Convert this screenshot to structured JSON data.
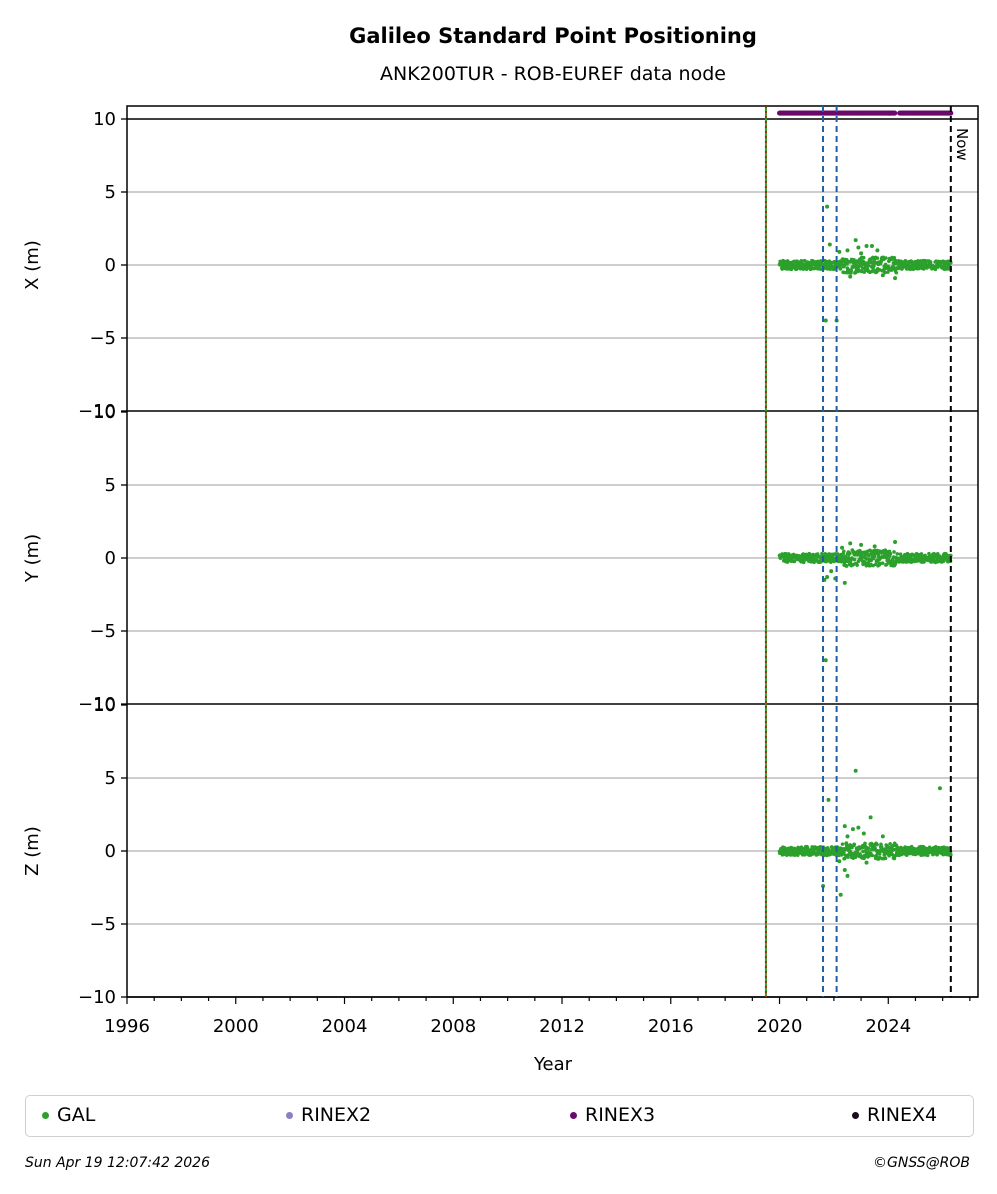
{
  "chart_data": {
    "type": "scatter",
    "title": "Galileo Standard Point Positioning",
    "subtitle": "ANK200TUR - ROB-EUREF data node",
    "xlabel": "Year",
    "xlim": [
      1996,
      2027.3
    ],
    "x_ticks": [
      "1996",
      "2000",
      "2004",
      "2008",
      "2012",
      "2016",
      "2020",
      "2024"
    ],
    "now_label": "Now",
    "panels": [
      {
        "ylabel": "X (m)",
        "ylim": [
          -10,
          10
        ],
        "y_ticks": [
          "−10",
          "−5",
          "0",
          "5",
          "10"
        ],
        "outliers": [
          [
            2021.75,
            4.0
          ],
          [
            2021.85,
            1.4
          ],
          [
            2021.7,
            -3.8
          ],
          [
            2022.1,
            -3.8
          ],
          [
            2022.2,
            0.9
          ],
          [
            2022.5,
            1.0
          ],
          [
            2022.8,
            1.7
          ],
          [
            2022.9,
            1.2
          ],
          [
            2023.0,
            0.8
          ],
          [
            2023.2,
            1.3
          ],
          [
            2023.4,
            1.3
          ],
          [
            2023.6,
            1.0
          ],
          [
            2023.8,
            -0.7
          ],
          [
            2024.25,
            -0.9
          ],
          [
            2022.6,
            -0.8
          ]
        ]
      },
      {
        "ylabel": "Y (m)",
        "ylim": [
          -10,
          10
        ],
        "y_ticks": [
          "−10",
          "−5",
          "0",
          "5",
          "10"
        ],
        "outliers": [
          [
            2021.7,
            -7.0
          ],
          [
            2021.65,
            -1.5
          ],
          [
            2021.75,
            -1.3
          ],
          [
            2021.9,
            -0.9
          ],
          [
            2022.05,
            -1.4
          ],
          [
            2022.4,
            -1.7
          ],
          [
            2022.6,
            1.0
          ],
          [
            2022.3,
            0.7
          ],
          [
            2023.0,
            0.9
          ],
          [
            2023.5,
            0.8
          ],
          [
            2024.25,
            1.1
          ]
        ]
      },
      {
        "ylabel": "Z (m)",
        "ylim": [
          -10,
          10
        ],
        "y_ticks": [
          "−10",
          "−5",
          "0",
          "5",
          "10"
        ],
        "outliers": [
          [
            2021.6,
            -2.4
          ],
          [
            2021.8,
            3.5
          ],
          [
            2022.25,
            -3.0
          ],
          [
            2022.8,
            5.5
          ],
          [
            2023.35,
            2.3
          ],
          [
            2022.4,
            1.7
          ],
          [
            2022.7,
            1.5
          ],
          [
            2022.9,
            1.6
          ],
          [
            2022.5,
            1.0
          ],
          [
            2022.2,
            -0.7
          ],
          [
            2022.4,
            -1.3
          ],
          [
            2022.5,
            -1.7
          ],
          [
            2023.1,
            1.2
          ],
          [
            2023.8,
            1.0
          ],
          [
            2025.9,
            4.3
          ],
          [
            2023.2,
            -0.8
          ]
        ]
      }
    ],
    "series": [
      {
        "name": "GAL",
        "color": "#2ca02c",
        "x_range": [
          2020.0,
          2026.3
        ],
        "typical_value": 0
      },
      {
        "name": "RINEX2",
        "color": "#8c7fbf"
      },
      {
        "name": "RINEX3",
        "color": "#6a0a6a",
        "x_range": [
          2020.0,
          2026.3
        ],
        "y_value": 10.4,
        "gap": [
          2024.25,
          2024.4
        ]
      },
      {
        "name": "RINEX4",
        "color": "#1a0a1a"
      }
    ],
    "vertical_lines": [
      {
        "x": 2019.5,
        "color": "#2ca02c",
        "style": "solid"
      },
      {
        "x": 2019.5,
        "color": "#cc0000",
        "style": "dotted"
      },
      {
        "x": 2021.6,
        "color": "#1f5fa8",
        "style": "dashed"
      },
      {
        "x": 2022.1,
        "color": "#1f5fa8",
        "style": "dashed"
      },
      {
        "x": 2026.3,
        "color": "#000000",
        "style": "dashed"
      }
    ]
  },
  "legend": {
    "items": [
      {
        "label": "GAL",
        "color": "#2ca02c"
      },
      {
        "label": "RINEX2",
        "color": "#8c7fbf"
      },
      {
        "label": "RINEX3",
        "color": "#6a0a6a"
      },
      {
        "label": "RINEX4",
        "color": "#1a0a1a"
      }
    ]
  },
  "footer": {
    "timestamp": "Sun Apr 19 12:07:42 2026",
    "credit": "©GNSS@ROB"
  }
}
